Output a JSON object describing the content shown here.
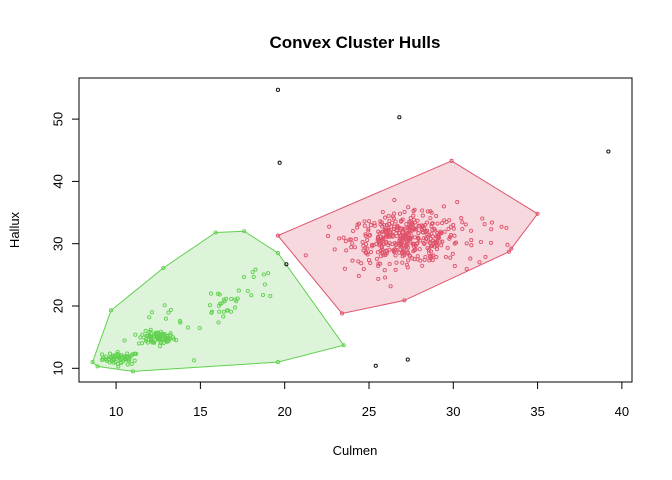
{
  "chart_data": {
    "type": "scatter",
    "title": "Convex Cluster Hulls",
    "xlabel": "Culmen",
    "ylabel": "Hallux",
    "xlim": [
      7.8,
      40.6
    ],
    "ylim": [
      7.8,
      56.6
    ],
    "xticks": [
      10,
      15,
      20,
      25,
      30,
      35,
      40
    ],
    "yticks": [
      10,
      20,
      30,
      40,
      50
    ],
    "grid": false,
    "legend": "none",
    "hulls": [
      {
        "color": "#61D04F",
        "fill": "#DDF4DA",
        "points": [
          [
            8.6,
            11.0
          ],
          [
            8.9,
            10.3
          ],
          [
            11.0,
            9.5
          ],
          [
            19.6,
            11.0
          ],
          [
            23.5,
            13.7
          ],
          [
            19.6,
            28.5
          ],
          [
            17.6,
            32.0
          ],
          [
            15.9,
            31.8
          ],
          [
            12.8,
            26.1
          ],
          [
            9.7,
            19.3
          ]
        ]
      },
      {
        "color": "#DF536B",
        "fill": "#F7D8DE",
        "points": [
          [
            19.6,
            31.3
          ],
          [
            29.9,
            43.3
          ],
          [
            35.0,
            34.8
          ],
          [
            33.3,
            28.7
          ],
          [
            27.1,
            20.9
          ],
          [
            23.4,
            18.8
          ]
        ]
      }
    ],
    "outliers": [
      [
        19.6,
        54.7
      ],
      [
        19.7,
        43.0
      ],
      [
        26.8,
        50.3
      ],
      [
        39.2,
        44.8
      ],
      [
        25.4,
        10.4
      ],
      [
        27.3,
        11.4
      ],
      [
        20.1,
        26.7
      ]
    ],
    "clusters": [
      {
        "color": "#61D04F",
        "groups": [
          {
            "cx": 10.3,
            "cy": 11.6,
            "sx": 0.55,
            "sy": 0.5,
            "n": 60
          },
          {
            "cx": 12.4,
            "cy": 14.8,
            "sx": 0.55,
            "sy": 0.55,
            "n": 70
          },
          {
            "cx": 16.3,
            "cy": 20.5,
            "sx": 0.7,
            "sy": 1.3,
            "n": 22
          },
          {
            "cx": 18.8,
            "cy": 24.0,
            "sx": 0.7,
            "sy": 1.8,
            "n": 12
          },
          {
            "cx": 13.0,
            "cy": 17.5,
            "sx": 1.8,
            "sy": 3.0,
            "n": 18
          }
        ]
      },
      {
        "color": "#DF536B",
        "groups": [
          {
            "cx": 27.2,
            "cy": 30.8,
            "sx": 1.6,
            "sy": 1.9,
            "n": 360
          },
          {
            "cx": 30.5,
            "cy": 31.5,
            "sx": 2.0,
            "sy": 3.0,
            "n": 25
          },
          {
            "cx": 25.0,
            "cy": 28.0,
            "sx": 1.8,
            "sy": 3.0,
            "n": 25
          }
        ]
      }
    ]
  }
}
